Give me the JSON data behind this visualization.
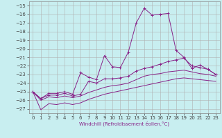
{
  "xlabel": "Windchill (Refroidissement éolien,°C)",
  "bg_color": "#c8eef0",
  "grid_color": "#b0b0b0",
  "line_color": "#882288",
  "xlim": [
    -0.5,
    23.5
  ],
  "ylim": [
    -27.5,
    -14.5
  ],
  "yticks": [
    -27,
    -26,
    -25,
    -24,
    -23,
    -22,
    -21,
    -20,
    -19,
    -18,
    -17,
    -16,
    -15
  ],
  "xticks": [
    0,
    1,
    2,
    3,
    4,
    5,
    6,
    7,
    8,
    9,
    10,
    11,
    12,
    13,
    14,
    15,
    16,
    17,
    18,
    19,
    20,
    21,
    22,
    23
  ],
  "series1_x": [
    0,
    1,
    2,
    3,
    4,
    5,
    6,
    7,
    8,
    9,
    10,
    11,
    12,
    13,
    14,
    15,
    16,
    17,
    18,
    19,
    20,
    21,
    22,
    23
  ],
  "series1_y": [
    -25.0,
    -25.8,
    -25.2,
    -25.2,
    -25.0,
    -25.3,
    -22.8,
    -23.3,
    -23.6,
    -20.8,
    -22.1,
    -22.2,
    -20.4,
    -17.0,
    -15.3,
    -16.1,
    -16.0,
    -15.9,
    -20.2,
    -21.0,
    -22.3,
    -21.9,
    -22.4,
    -23.0
  ],
  "series2_x": [
    0,
    1,
    2,
    3,
    4,
    5,
    6,
    7,
    8,
    9,
    10,
    11,
    12,
    13,
    14,
    15,
    16,
    17,
    18,
    19,
    20,
    21,
    22,
    23
  ],
  "series2_y": [
    -25.0,
    -25.8,
    -25.4,
    -25.4,
    -25.2,
    -25.5,
    -25.3,
    -23.8,
    -24.0,
    -23.5,
    -23.5,
    -23.4,
    -23.2,
    -22.6,
    -22.3,
    -22.1,
    -21.8,
    -21.5,
    -21.3,
    -21.1,
    -22.0,
    -22.2,
    -22.4,
    -23.0
  ],
  "series3_x": [
    0,
    1,
    2,
    3,
    4,
    5,
    6,
    7,
    8,
    9,
    10,
    11,
    12,
    13,
    14,
    15,
    16,
    17,
    18,
    19,
    20,
    21,
    22,
    23
  ],
  "series3_y": [
    -25.0,
    -27.1,
    -26.4,
    -26.5,
    -26.3,
    -26.5,
    -26.3,
    -25.9,
    -25.6,
    -25.3,
    -25.1,
    -24.9,
    -24.7,
    -24.5,
    -24.3,
    -24.1,
    -23.9,
    -23.7,
    -23.5,
    -23.4,
    -23.5,
    -23.6,
    -23.7,
    -23.8
  ],
  "series4_x": [
    0,
    1,
    2,
    3,
    4,
    5,
    6,
    7,
    8,
    9,
    10,
    11,
    12,
    13,
    14,
    15,
    16,
    17,
    18,
    19,
    20,
    21,
    22,
    23
  ],
  "series4_y": [
    -25.0,
    -26.0,
    -25.6,
    -25.7,
    -25.5,
    -25.7,
    -25.5,
    -25.1,
    -24.8,
    -24.5,
    -24.3,
    -24.2,
    -24.0,
    -23.6,
    -23.2,
    -23.0,
    -22.9,
    -22.7,
    -22.6,
    -22.5,
    -22.7,
    -22.9,
    -23.0,
    -23.2
  ],
  "tick_fontsize": 5,
  "xlabel_fontsize": 5,
  "tick_color": "#444444"
}
